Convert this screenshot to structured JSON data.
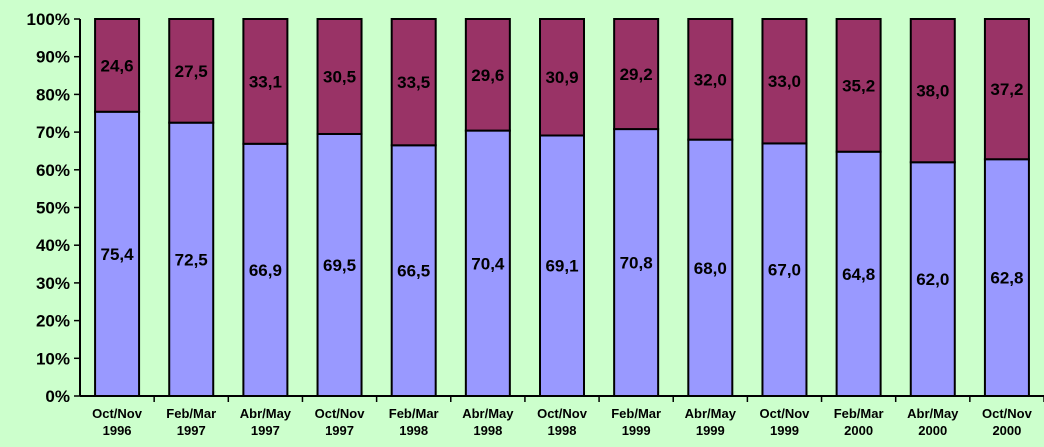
{
  "chart_data": {
    "type": "bar",
    "stacked": true,
    "percent_axis": true,
    "categories": [
      [
        "Oct/Nov",
        "1996"
      ],
      [
        "Feb/Mar",
        "1997"
      ],
      [
        "Abr/May",
        "1997"
      ],
      [
        "Oct/Nov",
        "1997"
      ],
      [
        "Feb/Mar",
        "1998"
      ],
      [
        "Abr/May",
        "1998"
      ],
      [
        "Oct/Nov",
        "1998"
      ],
      [
        "Feb/Mar",
        "1999"
      ],
      [
        "Abr/May",
        "1999"
      ],
      [
        "Oct/Nov",
        "1999"
      ],
      [
        "Feb/Mar",
        "2000"
      ],
      [
        "Abr/May",
        "2000"
      ],
      [
        "Oct/Nov",
        "2000"
      ]
    ],
    "series": [
      {
        "color": "#9999ff",
        "values": [
          75.4,
          72.5,
          66.9,
          69.5,
          66.5,
          70.4,
          69.1,
          70.8,
          68.0,
          67.0,
          64.8,
          62.0,
          62.8
        ],
        "labels": [
          "75,4",
          "72,5",
          "66,9",
          "69,5",
          "66,5",
          "70,4",
          "69,1",
          "70,8",
          "68,0",
          "67,0",
          "64,8",
          "62,0",
          "62,8"
        ]
      },
      {
        "color": "#993366",
        "values": [
          24.6,
          27.5,
          33.1,
          30.5,
          33.5,
          29.6,
          30.9,
          29.2,
          32.0,
          33.0,
          35.2,
          38.0,
          37.2
        ],
        "labels": [
          "24,6",
          "27,5",
          "33,1",
          "30,5",
          "33,5",
          "29,6",
          "30,9",
          "29,2",
          "32,0",
          "33,0",
          "35,2",
          "38,0",
          "37,2"
        ]
      }
    ],
    "y_ticks": [
      "0%",
      "10%",
      "20%",
      "30%",
      "40%",
      "50%",
      "60%",
      "70%",
      "80%",
      "90%",
      "100%"
    ],
    "ylim": [
      0,
      100
    ],
    "grid": false,
    "legend": "none",
    "background_color": "#ccffcc"
  }
}
